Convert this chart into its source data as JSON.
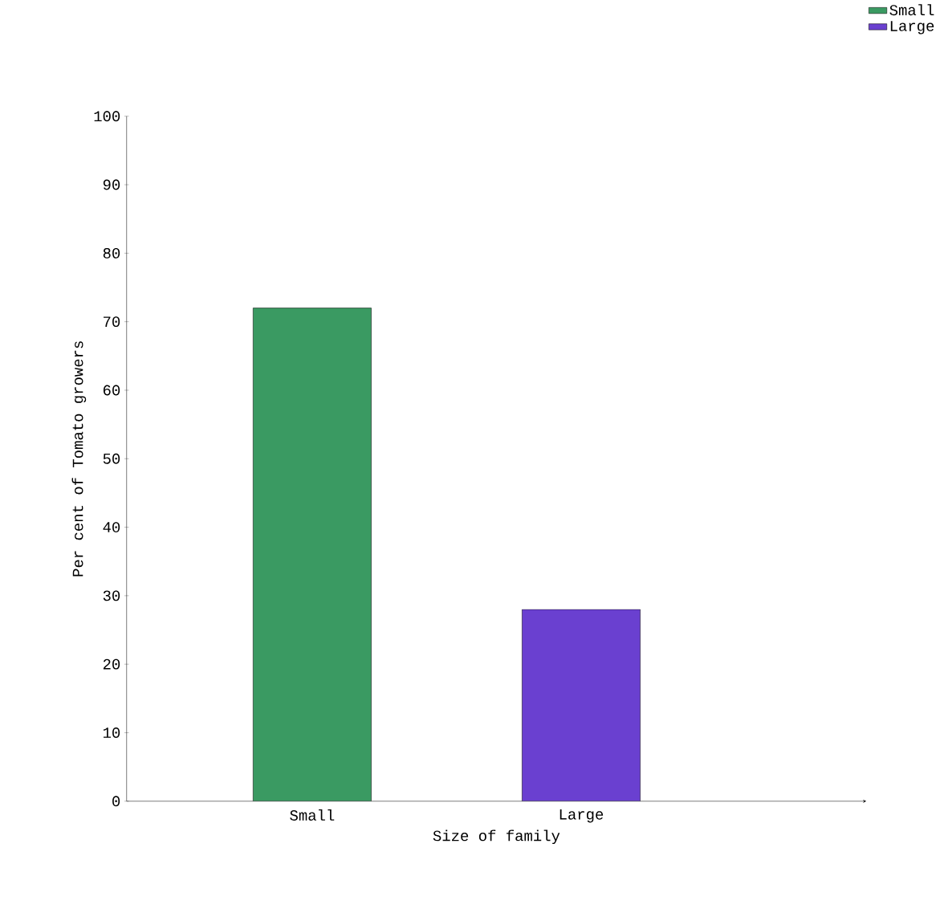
{
  "chart_data": {
    "type": "bar",
    "xlabel": "Size of family",
    "ylabel": "Per cent of Tomato growers",
    "categories": [
      "Small",
      "Large"
    ],
    "series": [
      {
        "name": "Small",
        "color": "#3a9a62",
        "values": [
          72,
          null
        ]
      },
      {
        "name": "Large",
        "color": "#6a40d0",
        "values": [
          null,
          28
        ]
      }
    ],
    "ylim": [
      0,
      100
    ],
    "yticks": [
      0,
      10,
      20,
      30,
      40,
      50,
      60,
      70,
      80,
      90,
      100
    ],
    "grid": false,
    "legend": "top right"
  }
}
